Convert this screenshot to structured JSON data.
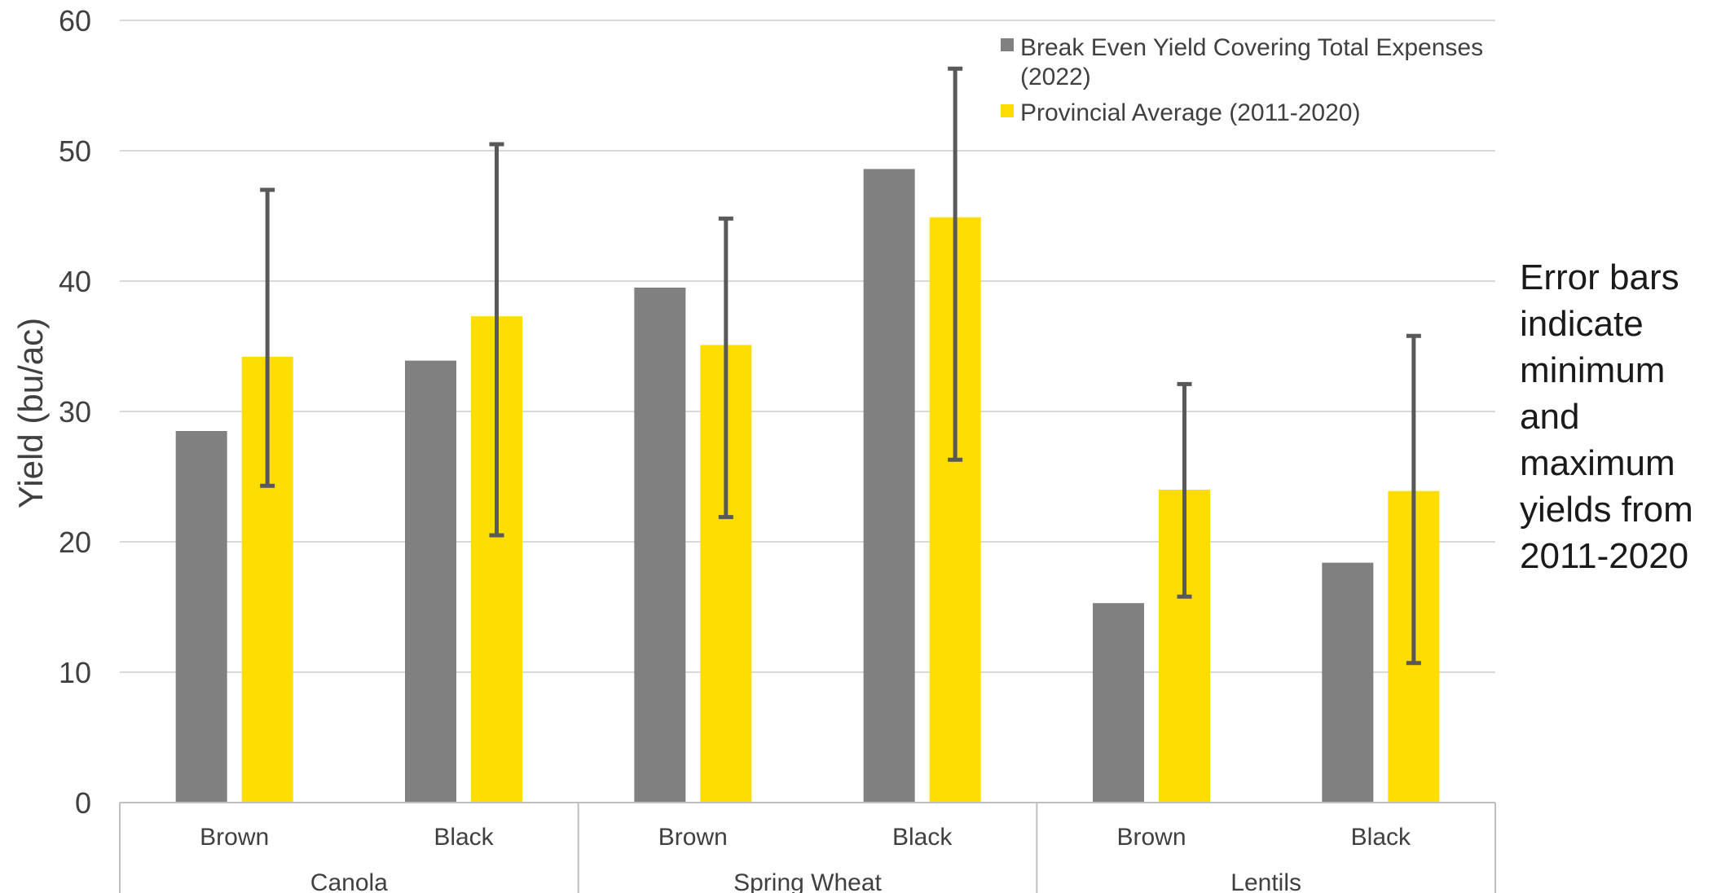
{
  "chart_data": {
    "type": "bar",
    "title": "",
    "ylabel": "Yield (bu/ac)",
    "xlabel": "",
    "ylim": [
      0,
      60
    ],
    "yticks": [
      0,
      10,
      20,
      30,
      40,
      50,
      60
    ],
    "grid": true,
    "legend_position": "top-right",
    "groups": [
      {
        "label": "Canola",
        "categories": [
          "Brown",
          "Black"
        ]
      },
      {
        "label": "Spring Wheat",
        "categories": [
          "Brown",
          "Black"
        ]
      },
      {
        "label": "Lentils",
        "categories": [
          "Brown",
          "Black"
        ]
      }
    ],
    "categories": [
      "Brown",
      "Black",
      "Brown",
      "Black",
      "Brown",
      "Black"
    ],
    "series": [
      {
        "name": "Break Even Yield Covering Total Expenses (2022)",
        "color": "#808080",
        "values": [
          28.5,
          33.9,
          39.5,
          48.6,
          15.3,
          18.4
        ]
      },
      {
        "name": "Provincial Average (2011-2020)",
        "color": "#ffdd00",
        "values": [
          34.2,
          37.3,
          35.1,
          44.9,
          24.0,
          23.9
        ],
        "error_min": [
          24.3,
          20.5,
          21.9,
          26.3,
          15.8,
          10.7
        ],
        "error_max": [
          47.0,
          50.5,
          44.8,
          56.3,
          32.1,
          35.8
        ]
      }
    ],
    "annotation": "Error bars indicate minimum and maximum yields from 2011-2020"
  }
}
